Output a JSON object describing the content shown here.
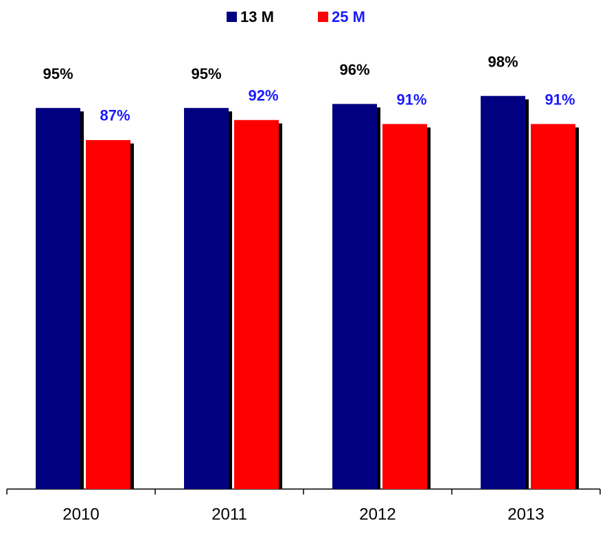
{
  "chart_data": {
    "type": "bar",
    "categories": [
      "2010",
      "2011",
      "2012",
      "2013"
    ],
    "series": [
      {
        "name": "13 M",
        "color": "#000080",
        "values": [
          95,
          95,
          96,
          98
        ],
        "value_labels": [
          "95%",
          "95%",
          "96%",
          "98%"
        ]
      },
      {
        "name": "25 M",
        "color": "#ff0000",
        "values": [
          87,
          92,
          91,
          91
        ],
        "value_labels": [
          "87%",
          "92%",
          "91%",
          "91%"
        ]
      }
    ],
    "ylim": [
      0,
      120
    ]
  }
}
